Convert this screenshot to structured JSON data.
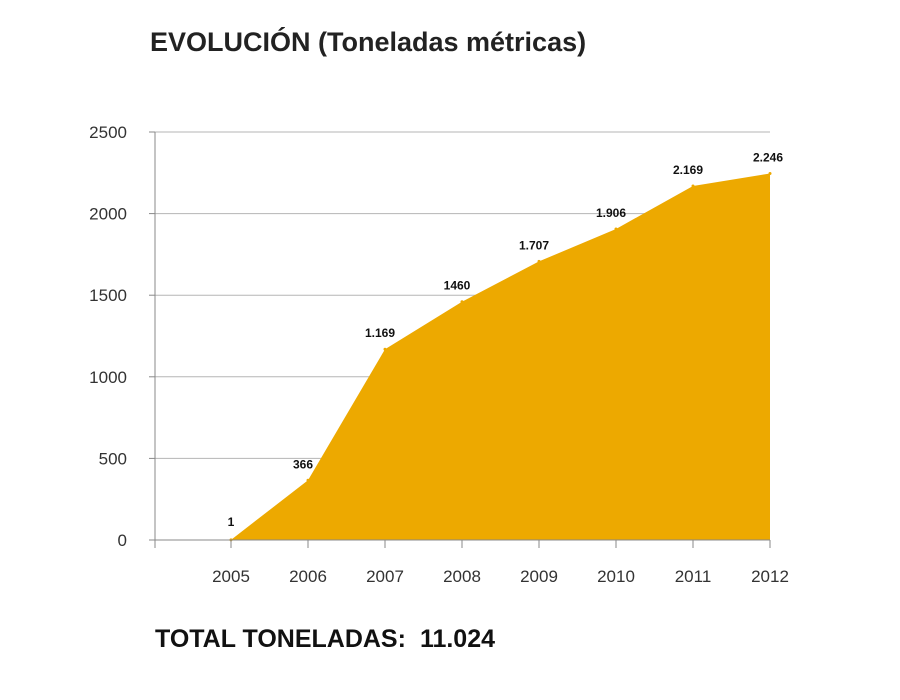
{
  "chart_data": {
    "type": "area",
    "title": "EVOLUCIÓN (Toneladas métricas)",
    "xlabel": "",
    "ylabel": "",
    "categories": [
      "2005",
      "2006",
      "2007",
      "2008",
      "2009",
      "2010",
      "2011",
      "2012"
    ],
    "values": [
      1,
      366,
      1169,
      1460,
      1707,
      1906,
      2169,
      2246
    ],
    "data_labels": [
      "1",
      "366",
      "1.169",
      "1460",
      "1.707",
      "1.906",
      "2.169",
      "2.246"
    ],
    "ylim": [
      0,
      2500
    ],
    "yticks": [
      0,
      500,
      1000,
      1500,
      2000,
      2500
    ],
    "grid": true,
    "legend": "none",
    "fill_color": "#EDA900"
  },
  "footer": {
    "total_label": "TOTAL TONELADAS:",
    "total_value": "11.024"
  }
}
